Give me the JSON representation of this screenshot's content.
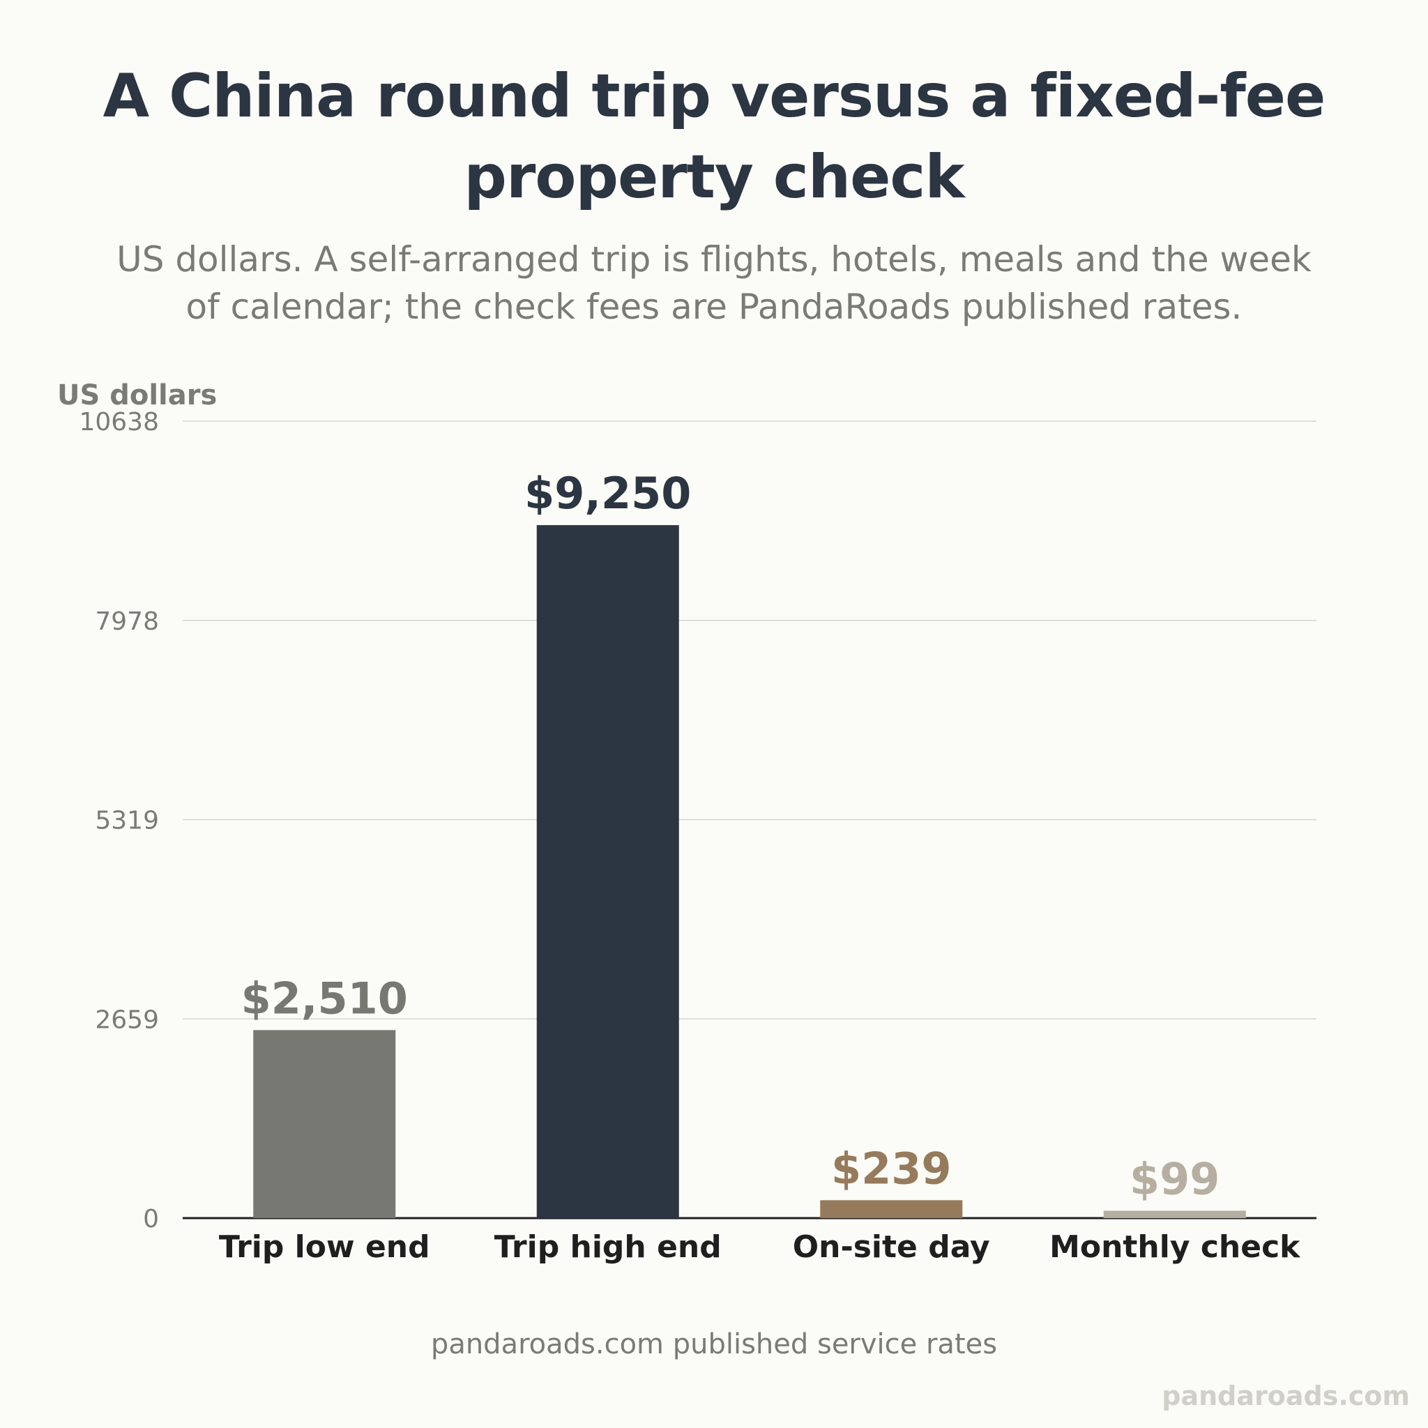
{
  "chart_data": {
    "type": "bar",
    "title": "A China round trip versus a fixed-fee property check",
    "subtitle": "US dollars. A self-arranged trip is flights, hotels, meals and the week of calendar; the check fees are PandaRoads published rates.",
    "ylabel": "US dollars",
    "xlabel": "",
    "ylim": [
      0,
      10638
    ],
    "yticks": [
      0,
      2659,
      5319,
      7978,
      10638
    ],
    "grid": true,
    "categories": [
      "Trip low end",
      "Trip high end",
      "On-site day",
      "Monthly check"
    ],
    "values": [
      2510,
      9250,
      239,
      99
    ],
    "value_labels": [
      "$2,510",
      "$9,250",
      "$239",
      "$99"
    ],
    "colors": [
      "#787873",
      "#2c3542",
      "#957a5b",
      "#b6aea0"
    ]
  },
  "source_note": "pandaroads.com published service rates",
  "watermark": "pandaroads.com"
}
